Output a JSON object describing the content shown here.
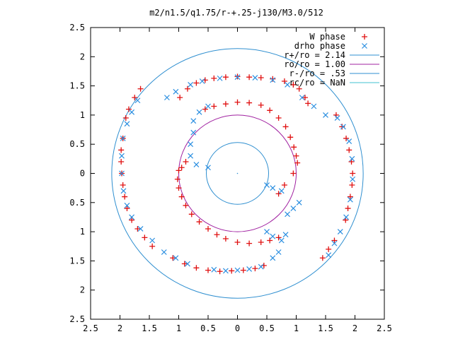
{
  "chart_data": {
    "type": "scatter",
    "title": "m2/n1.5/q1.75/r-+.25-j130/M3.0/512",
    "xlim": [
      -2.5,
      2.5
    ],
    "ylim": [
      -2.5,
      2.5
    ],
    "x_ticks": [
      {
        "value": -2.5,
        "label": "2.5"
      },
      {
        "value": -2.0,
        "label": "2"
      },
      {
        "value": -1.5,
        "label": "1.5"
      },
      {
        "value": -1.0,
        "label": "1"
      },
      {
        "value": -0.5,
        "label": "0.5"
      },
      {
        "value": 0.0,
        "label": "0"
      },
      {
        "value": 0.5,
        "label": "0.5"
      },
      {
        "value": 1.0,
        "label": "1"
      },
      {
        "value": 1.5,
        "label": "1.5"
      },
      {
        "value": 2.0,
        "label": "2"
      },
      {
        "value": 2.5,
        "label": "2.5"
      }
    ],
    "y_ticks": [
      {
        "value": 2.5,
        "label": "2.5"
      },
      {
        "value": 2.0,
        "label": "2"
      },
      {
        "value": 1.5,
        "label": "1.5"
      },
      {
        "value": 1.0,
        "label": "1"
      },
      {
        "value": 0.5,
        "label": "0.5"
      },
      {
        "value": 0.0,
        "label": "0"
      },
      {
        "value": -0.5,
        "label": "0.5"
      },
      {
        "value": -1.0,
        "label": "1"
      },
      {
        "value": -1.5,
        "label": "1.5"
      },
      {
        "value": -2.0,
        "label": "2"
      },
      {
        "value": -2.5,
        "label": "2.5"
      }
    ],
    "grid": false,
    "legend_position": "top-right",
    "circles": [
      {
        "name": "r+/ro = 2.14",
        "radius": 2.14,
        "color": "#2f8fd0"
      },
      {
        "name": "ro/ro = 1.00",
        "radius": 1.0,
        "color": "#a020a0"
      },
      {
        "name": "r-/ro = .53",
        "radius": 0.53,
        "color": "#2f8fd0"
      },
      {
        "name": "rc/ro = NaN",
        "radius": null,
        "color": "#40c0d0"
      }
    ],
    "series": [
      {
        "name": "W phase",
        "marker": "plus",
        "color": "#e01010",
        "points": [
          [
            -0.98,
            1.3
          ],
          [
            -0.85,
            1.45
          ],
          [
            -0.7,
            1.55
          ],
          [
            -0.55,
            1.6
          ],
          [
            -0.4,
            1.63
          ],
          [
            -0.2,
            1.65
          ],
          [
            0.0,
            1.66
          ],
          [
            0.2,
            1.65
          ],
          [
            0.4,
            1.64
          ],
          [
            0.6,
            1.62
          ],
          [
            0.8,
            1.58
          ],
          [
            0.95,
            1.52
          ],
          [
            1.05,
            1.45
          ],
          [
            1.15,
            1.3
          ],
          [
            1.2,
            1.2
          ],
          [
            -0.55,
            1.1
          ],
          [
            -0.4,
            1.15
          ],
          [
            -0.2,
            1.19
          ],
          [
            0.0,
            1.22
          ],
          [
            0.2,
            1.21
          ],
          [
            0.4,
            1.17
          ],
          [
            0.55,
            1.08
          ],
          [
            0.7,
            0.95
          ],
          [
            0.82,
            0.8
          ],
          [
            0.9,
            0.62
          ],
          [
            0.96,
            0.45
          ],
          [
            1.0,
            0.3
          ],
          [
            1.02,
            0.18
          ],
          [
            0.95,
            0.0
          ],
          [
            0.8,
            -0.2
          ],
          [
            0.7,
            -0.35
          ],
          [
            -1.0,
            0.05
          ],
          [
            -1.02,
            -0.1
          ],
          [
            -1.0,
            -0.25
          ],
          [
            -0.95,
            -0.4
          ],
          [
            -0.88,
            -0.55
          ],
          [
            -0.78,
            -0.7
          ],
          [
            -0.65,
            -0.83
          ],
          [
            -0.5,
            -0.95
          ],
          [
            -0.35,
            -1.05
          ],
          [
            -0.2,
            -1.12
          ],
          [
            0.0,
            -1.18
          ],
          [
            0.2,
            -1.2
          ],
          [
            0.4,
            -1.18
          ],
          [
            0.55,
            -1.15
          ],
          [
            0.7,
            -1.1
          ],
          [
            -0.88,
            0.2
          ],
          [
            -0.95,
            0.1
          ],
          [
            -1.65,
            1.45
          ],
          [
            -1.75,
            1.3
          ],
          [
            -1.85,
            1.1
          ],
          [
            -1.9,
            0.95
          ],
          [
            -1.95,
            0.6
          ],
          [
            -1.98,
            0.4
          ],
          [
            -1.98,
            0.2
          ],
          [
            -1.97,
            0.0
          ],
          [
            -1.95,
            -0.2
          ],
          [
            -1.92,
            -0.4
          ],
          [
            -1.88,
            -0.6
          ],
          [
            -1.8,
            -0.8
          ],
          [
            -1.7,
            -0.95
          ],
          [
            -1.58,
            -1.1
          ],
          [
            -1.45,
            -1.25
          ],
          [
            -1.1,
            -1.45
          ],
          [
            -0.9,
            -1.55
          ],
          [
            -0.7,
            -1.62
          ],
          [
            -0.5,
            -1.66
          ],
          [
            -0.3,
            -1.68
          ],
          [
            -0.1,
            -1.67
          ],
          [
            0.1,
            -1.66
          ],
          [
            0.3,
            -1.63
          ],
          [
            0.45,
            -1.58
          ],
          [
            1.45,
            -1.45
          ],
          [
            1.55,
            -1.3
          ],
          [
            1.65,
            -1.15
          ],
          [
            1.68,
            1.0
          ],
          [
            1.78,
            0.8
          ],
          [
            1.85,
            0.6
          ],
          [
            1.9,
            0.4
          ],
          [
            1.94,
            0.2
          ],
          [
            1.96,
            0.0
          ],
          [
            1.95,
            -0.2
          ],
          [
            1.92,
            -0.4
          ],
          [
            1.88,
            -0.6
          ],
          [
            1.84,
            -0.8
          ]
        ]
      },
      {
        "name": "drho phase",
        "marker": "cross",
        "color": "#2a8ee0",
        "points": [
          [
            -1.2,
            1.3
          ],
          [
            -1.05,
            1.4
          ],
          [
            -0.8,
            1.52
          ],
          [
            -0.6,
            1.58
          ],
          [
            -0.3,
            1.63
          ],
          [
            0.0,
            1.65
          ],
          [
            0.3,
            1.64
          ],
          [
            0.6,
            1.6
          ],
          [
            0.85,
            1.52
          ],
          [
            1.1,
            1.3
          ],
          [
            1.3,
            1.15
          ],
          [
            1.5,
            1.0
          ],
          [
            -0.75,
            0.7
          ],
          [
            -0.8,
            0.5
          ],
          [
            -0.8,
            0.3
          ],
          [
            -0.7,
            0.15
          ],
          [
            -0.5,
            0.1
          ],
          [
            -0.75,
            0.9
          ],
          [
            -0.65,
            1.05
          ],
          [
            -0.5,
            1.15
          ],
          [
            0.5,
            -0.2
          ],
          [
            0.6,
            -0.25
          ],
          [
            0.75,
            -0.3
          ],
          [
            0.5,
            -1.0
          ],
          [
            0.6,
            -1.08
          ],
          [
            0.75,
            -1.15
          ],
          [
            0.82,
            -1.05
          ],
          [
            0.85,
            -0.7
          ],
          [
            0.95,
            -0.6
          ],
          [
            1.05,
            -0.5
          ],
          [
            -1.7,
            1.25
          ],
          [
            -1.8,
            1.05
          ],
          [
            -1.88,
            0.85
          ],
          [
            -1.95,
            0.6
          ],
          [
            -1.97,
            0.3
          ],
          [
            -1.97,
            0.0
          ],
          [
            -1.94,
            -0.3
          ],
          [
            -1.88,
            -0.55
          ],
          [
            -1.8,
            -0.75
          ],
          [
            -1.65,
            -0.95
          ],
          [
            -1.45,
            -1.15
          ],
          [
            -1.25,
            -1.35
          ],
          [
            -1.05,
            -1.45
          ],
          [
            -0.85,
            -1.55
          ],
          [
            -0.4,
            -1.65
          ],
          [
            -0.2,
            -1.67
          ],
          [
            0.0,
            -1.66
          ],
          [
            0.2,
            -1.64
          ],
          [
            0.4,
            -1.6
          ],
          [
            0.6,
            -1.45
          ],
          [
            0.7,
            -1.35
          ],
          [
            1.55,
            -1.4
          ],
          [
            1.65,
            -1.2
          ],
          [
            1.75,
            -1.0
          ],
          [
            1.85,
            -0.75
          ],
          [
            1.92,
            -0.45
          ],
          [
            1.96,
            -0.1
          ],
          [
            1.95,
            0.25
          ],
          [
            1.9,
            0.55
          ],
          [
            1.8,
            0.8
          ],
          [
            1.7,
            0.95
          ]
        ]
      }
    ]
  }
}
